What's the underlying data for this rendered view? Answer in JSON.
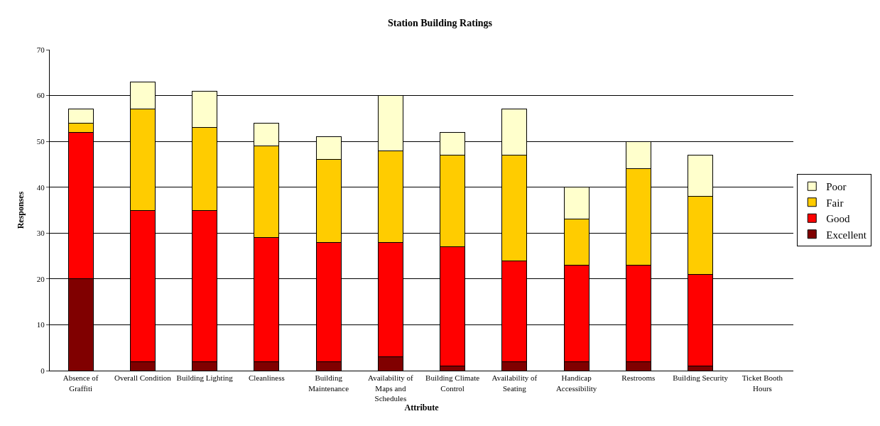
{
  "chart_data": {
    "type": "bar",
    "stacked": true,
    "title": "Station Building Ratings",
    "xlabel": "Attribute",
    "ylabel": "Responses",
    "categories": [
      "Absence of Graffiti",
      "Overall Condition",
      "Building Lighting",
      "Cleanliness",
      "Building Maintenance",
      "Availability of Maps and Schedules",
      "Building Climate Control",
      "Availability of Seating",
      "Handicap Accessibility",
      "Restrooms",
      "Building Security",
      "Ticket Booth Hours"
    ],
    "series": [
      {
        "name": "Excellent",
        "color": "#800000",
        "values": [
          20,
          2,
          2,
          2,
          2,
          3,
          1,
          2,
          2,
          2,
          1,
          0
        ]
      },
      {
        "name": "Good",
        "color": "#ff0000",
        "values": [
          32,
          33,
          33,
          27,
          26,
          25,
          26,
          22,
          21,
          21,
          20,
          0
        ]
      },
      {
        "name": "Fair",
        "color": "#ffcc00",
        "values": [
          2,
          22,
          18,
          20,
          18,
          20,
          20,
          23,
          10,
          21,
          17,
          0
        ]
      },
      {
        "name": "Poor",
        "color": "#ffffcc",
        "values": [
          3,
          6,
          8,
          5,
          5,
          12,
          5,
          10,
          7,
          6,
          9,
          0
        ]
      }
    ],
    "ylim": [
      0,
      70
    ],
    "yticks": [
      0,
      10,
      20,
      30,
      40,
      50,
      60,
      70
    ],
    "grid": "y",
    "legend": "right"
  }
}
